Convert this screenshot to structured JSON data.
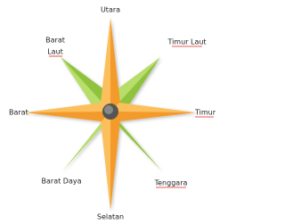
{
  "labels": {
    "north": "Utara",
    "northwest": [
      "Barat",
      "Laut"
    ],
    "northeast": "Timur Laut",
    "west": "Barat",
    "east": "Timur",
    "southwest": "Barat Daya",
    "southeast": "Tenggara",
    "south": "Selatan"
  }
}
